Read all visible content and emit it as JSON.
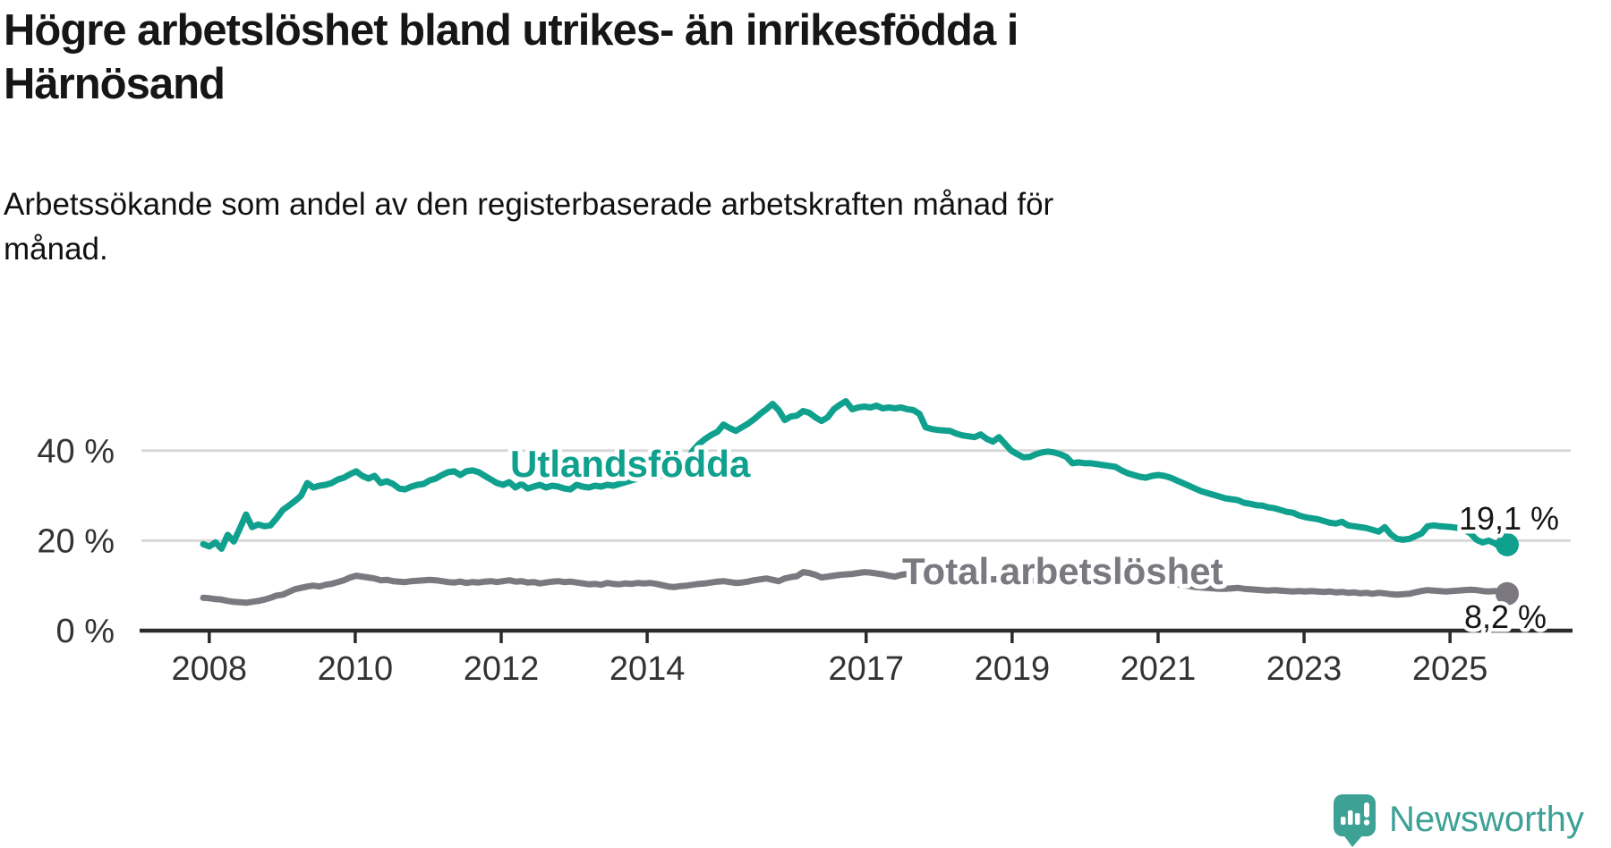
{
  "title": {
    "line1": "Högre arbetslöshet bland utrikes- än inrikesfödda i",
    "line2": "Härnösand",
    "full": "Högre arbetslöshet bland utrikes- än inrikesfödda i Härnösand"
  },
  "subtitle": {
    "line1": "Arbetssökande som andel av den registerbaserade arbetskraften månad för",
    "line2": "månad.",
    "full": "Arbetssökande som andel av den registerbaserade arbetskraften månad för månad."
  },
  "branding": {
    "name": "Newsworthy"
  },
  "colors": {
    "accent_teal": "#0fa08e",
    "series_gray": "#7b797f",
    "axis": "#2b2b2b",
    "gridline": "#d8d8d8",
    "text": "#161616",
    "tick_label": "#333333",
    "logo_teal": "#3ea195"
  },
  "chart_data": {
    "type": "line",
    "x_unit": "month",
    "x_start": "2007-12",
    "x_end": "2025-09",
    "x_tick_years": [
      2008,
      2010,
      2012,
      2014,
      2017,
      2019,
      2021,
      2023,
      2025
    ],
    "x_tick_labels": [
      "2008",
      "2010",
      "2012",
      "2014",
      "2017",
      "2019",
      "2021",
      "2023",
      "2025"
    ],
    "y_tick_values": [
      0,
      20,
      40
    ],
    "y_tick_labels": [
      "0 %",
      "20 %",
      "40 %"
    ],
    "ylim": [
      0,
      63
    ],
    "grid": true,
    "legend_position": "inline-labels",
    "series": [
      {
        "name": "Utlandsfödda",
        "color": "#0fa08e",
        "end_label": "19,1 %",
        "end_value": 19.1,
        "values": [
          19.2,
          18.7,
          19.6,
          18.2,
          21.3,
          19.8,
          22.7,
          25.8,
          23.0,
          23.6,
          23.2,
          23.4,
          25.0,
          26.8,
          27.8,
          28.8,
          30.0,
          32.8,
          31.8,
          32.2,
          32.4,
          32.8,
          33.6,
          34.0,
          34.8,
          35.4,
          34.4,
          33.8,
          34.4,
          32.8,
          33.2,
          32.6,
          31.6,
          31.4,
          32.0,
          32.4,
          32.6,
          33.4,
          33.8,
          34.6,
          35.2,
          35.4,
          34.6,
          35.4,
          35.6,
          35.2,
          34.4,
          33.6,
          32.8,
          32.4,
          33.0,
          31.8,
          32.6,
          31.6,
          32.0,
          32.4,
          31.8,
          32.2,
          32.0,
          31.6,
          31.4,
          32.4,
          32.0,
          31.8,
          32.2,
          32.0,
          32.4,
          32.2,
          32.6,
          33.0,
          33.4,
          33.8,
          34.2,
          34.8,
          34.2,
          34.6,
          35.2,
          35.8,
          36.4,
          38.0,
          40.0,
          41.5,
          42.6,
          43.5,
          44.2,
          45.8,
          45.0,
          44.4,
          45.2,
          46.0,
          47.0,
          48.2,
          49.2,
          50.4,
          49.0,
          46.8,
          47.6,
          47.8,
          48.8,
          48.4,
          47.4,
          46.6,
          47.4,
          49.2,
          50.2,
          51.0,
          49.2,
          49.6,
          49.8,
          49.6,
          50.0,
          49.4,
          49.6,
          49.4,
          49.6,
          49.2,
          49.0,
          48.2,
          45.2,
          44.8,
          44.6,
          44.5,
          44.4,
          43.8,
          43.4,
          43.2,
          43.0,
          43.6,
          42.6,
          42.0,
          43.0,
          41.5,
          40.0,
          39.2,
          38.5,
          38.6,
          39.2,
          39.6,
          39.8,
          39.6,
          39.2,
          38.6,
          37.2,
          37.4,
          37.2,
          37.2,
          37.0,
          36.8,
          36.6,
          36.4,
          35.6,
          35.0,
          34.6,
          34.2,
          34.0,
          34.4,
          34.6,
          34.4,
          34.0,
          33.4,
          32.8,
          32.2,
          31.6,
          31.0,
          30.6,
          30.2,
          29.8,
          29.4,
          29.2,
          29.0,
          28.4,
          28.2,
          27.9,
          27.8,
          27.4,
          27.2,
          26.8,
          26.4,
          26.2,
          25.6,
          25.2,
          25.0,
          24.8,
          24.4,
          24.0,
          23.8,
          24.2,
          23.4,
          23.2,
          23.0,
          22.8,
          22.4,
          22.0,
          23.0,
          21.4,
          20.4,
          20.2,
          20.4,
          21.0,
          21.6,
          23.2,
          23.4,
          23.2,
          23.1,
          23.0,
          22.8,
          22.4,
          21.6,
          20.2,
          19.6,
          20.0,
          19.4,
          18.5,
          19.1
        ]
      },
      {
        "name": "Total arbetslöshet",
        "color": "#7b797f",
        "end_label": "8,2 %",
        "end_value": 8.2,
        "values": [
          7.3,
          7.2,
          7.0,
          6.9,
          6.6,
          6.4,
          6.3,
          6.2,
          6.4,
          6.6,
          6.9,
          7.3,
          7.8,
          8.0,
          8.6,
          9.2,
          9.5,
          9.8,
          10.0,
          9.8,
          10.2,
          10.4,
          10.8,
          11.2,
          11.8,
          12.2,
          12.0,
          11.8,
          11.6,
          11.2,
          11.3,
          11.0,
          10.9,
          10.8,
          11.0,
          11.1,
          11.2,
          11.3,
          11.2,
          11.0,
          10.8,
          10.7,
          10.9,
          10.6,
          10.8,
          10.7,
          10.9,
          11.0,
          10.8,
          11.0,
          11.2,
          10.9,
          11.0,
          10.7,
          10.8,
          10.5,
          10.7,
          10.9,
          11.0,
          10.8,
          10.9,
          10.7,
          10.5,
          10.3,
          10.4,
          10.2,
          10.6,
          10.4,
          10.3,
          10.5,
          10.4,
          10.6,
          10.5,
          10.6,
          10.4,
          10.1,
          9.8,
          9.7,
          9.9,
          10.0,
          10.2,
          10.4,
          10.5,
          10.7,
          10.9,
          11.0,
          10.8,
          10.6,
          10.7,
          10.9,
          11.2,
          11.4,
          11.6,
          11.3,
          11.0,
          11.6,
          11.9,
          12.1,
          13.0,
          12.8,
          12.4,
          11.8,
          12.0,
          12.2,
          12.4,
          12.5,
          12.6,
          12.8,
          13.0,
          12.9,
          12.7,
          12.5,
          12.2,
          12.0,
          12.4,
          12.6,
          12.8,
          12.7,
          12.5,
          12.4,
          12.3,
          12.4,
          12.2,
          12.0,
          11.9,
          11.8,
          11.7,
          11.8,
          11.6,
          11.4,
          11.5,
          11.3,
          11.2,
          11.4,
          11.2,
          11.1,
          11.0,
          10.9,
          11.0,
          11.2,
          11.0,
          10.8,
          10.9,
          10.7,
          10.8,
          10.9,
          10.8,
          11.0,
          11.4,
          11.6,
          11.8,
          11.6,
          11.4,
          11.2,
          11.0,
          10.8,
          10.7,
          10.6,
          10.5,
          10.3,
          10.1,
          9.9,
          9.7,
          9.6,
          9.5,
          9.4,
          9.3,
          9.3,
          9.4,
          9.5,
          9.3,
          9.2,
          9.1,
          9.0,
          8.9,
          9.0,
          8.9,
          8.8,
          8.7,
          8.8,
          8.7,
          8.8,
          8.7,
          8.6,
          8.7,
          8.5,
          8.6,
          8.4,
          8.5,
          8.3,
          8.4,
          8.2,
          8.4,
          8.3,
          8.1,
          8.0,
          8.1,
          8.2,
          8.5,
          8.8,
          9.0,
          8.9,
          8.8,
          8.7,
          8.8,
          8.9,
          9.0,
          9.1,
          9.0,
          8.8,
          8.7,
          8.8,
          8.6,
          8.2
        ]
      }
    ]
  }
}
